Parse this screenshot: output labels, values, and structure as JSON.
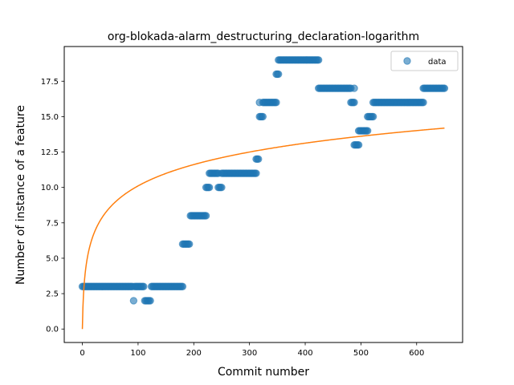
{
  "chart_data": {
    "type": "scatter",
    "title": "org-blokada-alarm_destructuring_declaration-logarithm",
    "xlabel": "Commit number",
    "ylabel": "Number of instance of a feature",
    "xlim": [
      -32.5,
      682.5
    ],
    "ylim": [
      -0.95,
      19.95
    ],
    "xticks": [
      0,
      100,
      200,
      300,
      400,
      500,
      600
    ],
    "yticks": [
      0.0,
      2.5,
      5.0,
      7.5,
      10.0,
      12.5,
      15.0,
      17.5
    ],
    "ytick_labels": [
      "0.0",
      "2.5",
      "5.0",
      "7.5",
      "10.0",
      "12.5",
      "15.0",
      "17.5"
    ],
    "grid": false,
    "legend_position": "top-right",
    "colors": {
      "data": "#1f77b4",
      "fit": "#ff7f0e"
    },
    "series": [
      {
        "name": "data",
        "kind": "points",
        "segments": [
          {
            "x_start": 0,
            "x_end": 90,
            "y": 3
          },
          {
            "x_start": 92,
            "x_end": 92,
            "y": 2
          },
          {
            "x_start": 94,
            "x_end": 110,
            "y": 3
          },
          {
            "x_start": 112,
            "x_end": 122,
            "y": 2
          },
          {
            "x_start": 124,
            "x_end": 180,
            "y": 3
          },
          {
            "x_start": 180,
            "x_end": 192,
            "y": 6
          },
          {
            "x_start": 194,
            "x_end": 222,
            "y": 8
          },
          {
            "x_start": 222,
            "x_end": 228,
            "y": 10
          },
          {
            "x_start": 228,
            "x_end": 244,
            "y": 11
          },
          {
            "x_start": 244,
            "x_end": 250,
            "y": 10
          },
          {
            "x_start": 250,
            "x_end": 312,
            "y": 11
          },
          {
            "x_start": 312,
            "x_end": 316,
            "y": 12
          },
          {
            "x_start": 318,
            "x_end": 318,
            "y": 16
          },
          {
            "x_start": 318,
            "x_end": 324,
            "y": 15
          },
          {
            "x_start": 324,
            "x_end": 348,
            "y": 16
          },
          {
            "x_start": 348,
            "x_end": 352,
            "y": 18
          },
          {
            "x_start": 352,
            "x_end": 424,
            "y": 19
          },
          {
            "x_start": 424,
            "x_end": 482,
            "y": 17
          },
          {
            "x_start": 482,
            "x_end": 488,
            "y": 16
          },
          {
            "x_start": 488,
            "x_end": 488,
            "y": 17
          },
          {
            "x_start": 488,
            "x_end": 496,
            "y": 13
          },
          {
            "x_start": 496,
            "x_end": 512,
            "y": 14
          },
          {
            "x_start": 512,
            "x_end": 522,
            "y": 15
          },
          {
            "x_start": 522,
            "x_end": 612,
            "y": 16
          },
          {
            "x_start": 612,
            "x_end": 650,
            "y": 17
          }
        ]
      },
      {
        "kind": "line",
        "formula": "y = 2.19 * ln(x + 1)",
        "x_range": [
          0,
          650
        ]
      }
    ]
  }
}
